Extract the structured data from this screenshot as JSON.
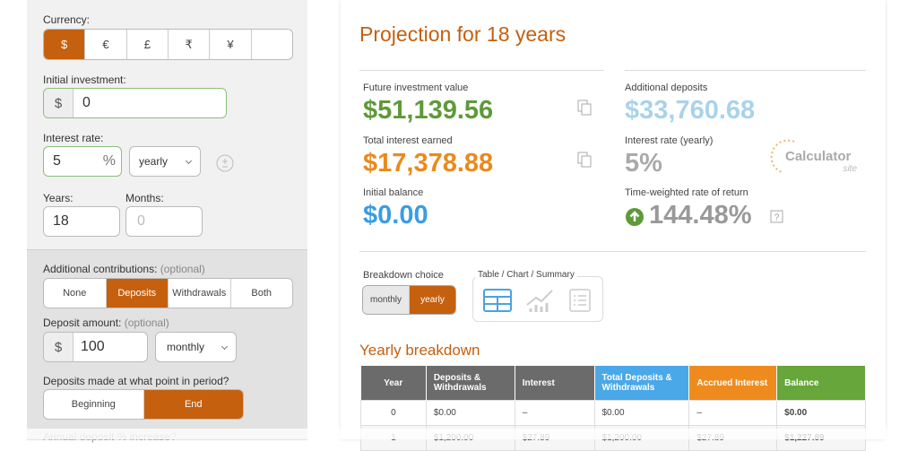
{
  "sidebar": {
    "currency": {
      "label": "Currency:",
      "options": [
        "$",
        "€",
        "£",
        "₹",
        "¥"
      ]
    },
    "initial_investment": {
      "label": "Initial investment:",
      "prefix": "$",
      "value": 0
    },
    "interest_rate": {
      "label": "Interest rate:",
      "value": 5,
      "suffix": "%",
      "frequency": "yearly"
    },
    "years": {
      "label": "Years:",
      "value": 18
    },
    "months": {
      "label": "Months:",
      "placeholder": 0
    },
    "contributions": {
      "label": "Additional contributions:",
      "note": "(optional)",
      "options": [
        "None",
        "Deposits",
        "Withdrawals",
        "Both"
      ]
    },
    "deposit_amount": {
      "label": "Deposit amount:",
      "note": "(optional)",
      "prefix": "$",
      "value": 100,
      "frequency": "monthly"
    },
    "deposit_timing": {
      "label": "Deposits made at what point in period?",
      "options": [
        "Beginning",
        "End"
      ]
    },
    "annual_increase": {
      "label": "Annual deposit % increase?"
    }
  },
  "results": {
    "title": "Projection for 18 years",
    "future_value": {
      "label": "Future investment value",
      "value": "$51,139.56"
    },
    "total_interest": {
      "label": "Total interest earned",
      "value": "$17,378.88"
    },
    "initial_balance": {
      "label": "Initial balance",
      "value": "$0.00"
    },
    "additional_deposits": {
      "label": "Additional deposits",
      "value": "$33,760.68"
    },
    "interest_rate": {
      "label": "Interest rate (yearly)",
      "value": "5%"
    },
    "twrr": {
      "label": "Time-weighted rate of return",
      "value": "144.48%"
    },
    "logo": {
      "name": "Calculator",
      "suffix": "site"
    },
    "breakdown": {
      "label": "Breakdown choice",
      "options": [
        "monthly",
        "yearly"
      ]
    },
    "view": {
      "label": "Table / Chart / Summary"
    }
  },
  "table": {
    "title": "Yearly breakdown",
    "headers": [
      "Year",
      "Deposits & Withdrawals",
      "Interest",
      "Total Deposits & Withdrawals",
      "Accrued Interest",
      "Balance"
    ],
    "rows": [
      [
        "0",
        "$0.00",
        "–",
        "$0.00",
        "–",
        "$0.00"
      ],
      [
        "1",
        "$1,200.00",
        "$27.89",
        "$1,200.00",
        "$27.89",
        "$1,227.89"
      ]
    ]
  }
}
